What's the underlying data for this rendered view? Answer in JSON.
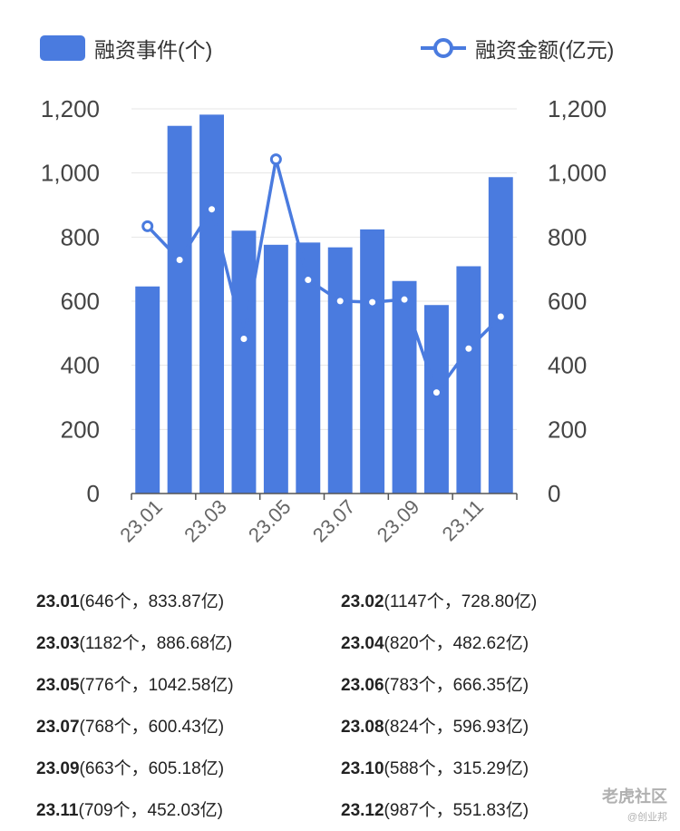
{
  "legend": {
    "bar_label": "融资事件(个)",
    "line_label": "融资金额(亿元)"
  },
  "colors": {
    "bar": "#4a7bdf",
    "line": "#4a7bdf",
    "grid": "#e6e6e6",
    "axis": "#555555"
  },
  "chart_data": {
    "type": "bar",
    "categories": [
      "23.01",
      "23.02",
      "23.03",
      "23.04",
      "23.05",
      "23.06",
      "23.07",
      "23.08",
      "23.09",
      "23.10",
      "23.11",
      "23.12"
    ],
    "x_tick_labels": [
      "23.01",
      "23.03",
      "23.05",
      "23.07",
      "23.09",
      "23.11"
    ],
    "series": [
      {
        "name": "融资事件(个)",
        "type": "bar",
        "axis": "left",
        "values": [
          646,
          1147,
          1182,
          820,
          776,
          783,
          768,
          824,
          663,
          588,
          709,
          987
        ]
      },
      {
        "name": "融资金额(亿元)",
        "type": "line",
        "axis": "right",
        "values": [
          833.87,
          728.8,
          886.68,
          482.62,
          1042.58,
          666.35,
          600.43,
          596.93,
          605.18,
          315.29,
          452.03,
          551.83
        ]
      }
    ],
    "y_left": {
      "ylim": [
        0,
        1200
      ],
      "ticks": [
        "0",
        "200",
        "400",
        "600",
        "800",
        "1,000",
        "1,200"
      ]
    },
    "y_right": {
      "ylim": [
        0,
        1200
      ],
      "ticks": [
        "0",
        "200",
        "400",
        "600",
        "800",
        "1,000",
        "1,200"
      ]
    },
    "grid": true,
    "legend_position": "top"
  },
  "summary": [
    {
      "month": "23.01",
      "detail": "(646个，833.87亿)"
    },
    {
      "month": "23.02",
      "detail": "(1147个，728.80亿)"
    },
    {
      "month": "23.03",
      "detail": "(1182个，886.68亿)"
    },
    {
      "month": "23.04",
      "detail": "(820个，482.62亿)"
    },
    {
      "month": "23.05",
      "detail": "(776个，1042.58亿)"
    },
    {
      "month": "23.06",
      "detail": "(783个，666.35亿)"
    },
    {
      "month": "23.07",
      "detail": "(768个，600.43亿)"
    },
    {
      "month": "23.08",
      "detail": "(824个，596.93亿)"
    },
    {
      "month": "23.09",
      "detail": "(663个，605.18亿)"
    },
    {
      "month": "23.10",
      "detail": "(588个，315.29亿)"
    },
    {
      "month": "23.11",
      "detail": "(709个，452.03亿)"
    },
    {
      "month": "23.12",
      "detail": "(987个，551.83亿)"
    }
  ],
  "watermark": {
    "line1": "老虎社区",
    "line2": "@创业邦"
  }
}
